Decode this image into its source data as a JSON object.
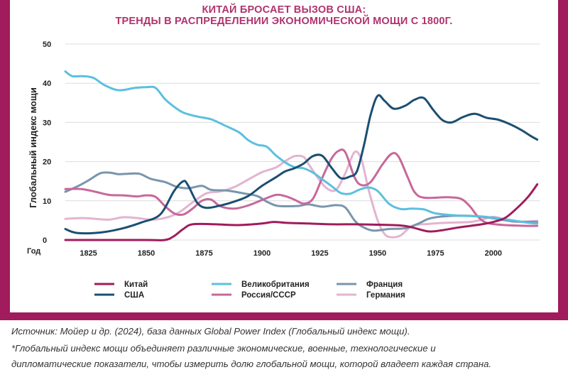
{
  "header": {
    "title_line1": "КИТАЙ БРОСАЕТ ВЫЗОВ США:",
    "title_line2": "ТРЕНДЫ В РАСПРЕДЕЛЕНИИ ЭКОНОМИЧЕСКОЙ МОЩИ С 1800Г."
  },
  "footer": {
    "source": "Источник: Мойер и др. (2024), база данных Global Power Index (Глобальный индекс мощи).",
    "note_line1": "*Глобальный индекс мощи объединяет различные экономические, военные, технологические и",
    "note_line2": "дипломатические показатели, чтобы измерить долю глобальной мощи, которой владеет каждая страна."
  },
  "colors": {
    "frame": "#a01c5c",
    "title": "#b0336e"
  },
  "chart_data": {
    "type": "line",
    "ylabel": "Глобальный индекс мощи",
    "xlabel": "Год",
    "xlim": [
      1815,
      2020
    ],
    "ylim": [
      0,
      50
    ],
    "xticks": [
      1825,
      1850,
      1875,
      1900,
      1925,
      1950,
      1975,
      2000
    ],
    "yticks": [
      0,
      10,
      20,
      30,
      40,
      50
    ],
    "grid": "horizontal",
    "legend_position": "bottom",
    "series": [
      {
        "name": "Китай",
        "color": "#a01c5c",
        "points": [
          [
            1815,
            0
          ],
          [
            1850,
            0
          ],
          [
            1858,
            0
          ],
          [
            1862,
            1
          ],
          [
            1866,
            2.8
          ],
          [
            1870,
            4
          ],
          [
            1880,
            4
          ],
          [
            1890,
            3.8
          ],
          [
            1900,
            4.2
          ],
          [
            1905,
            4.6
          ],
          [
            1910,
            4.4
          ],
          [
            1920,
            4.2
          ],
          [
            1930,
            4
          ],
          [
            1940,
            4
          ],
          [
            1950,
            3.9
          ],
          [
            1960,
            3.7
          ],
          [
            1965,
            3.2
          ],
          [
            1972,
            2.2
          ],
          [
            1978,
            2.5
          ],
          [
            1985,
            3.2
          ],
          [
            1995,
            4
          ],
          [
            2000,
            4.6
          ],
          [
            2005,
            5.6
          ],
          [
            2010,
            8
          ],
          [
            2015,
            11
          ],
          [
            2019,
            14.2
          ]
        ]
      },
      {
        "name": "Великобритания",
        "color": "#5bc0de",
        "points": [
          [
            1815,
            43
          ],
          [
            1818,
            41.8
          ],
          [
            1822,
            41.8
          ],
          [
            1827,
            41.4
          ],
          [
            1832,
            39.5
          ],
          [
            1838,
            38.2
          ],
          [
            1845,
            38.8
          ],
          [
            1850,
            39
          ],
          [
            1854,
            38.8
          ],
          [
            1858,
            36
          ],
          [
            1862,
            34
          ],
          [
            1866,
            32.5
          ],
          [
            1872,
            31.5
          ],
          [
            1878,
            30.8
          ],
          [
            1884,
            29.2
          ],
          [
            1890,
            27.5
          ],
          [
            1894,
            25.5
          ],
          [
            1898,
            24.3
          ],
          [
            1902,
            23.8
          ],
          [
            1906,
            21.6
          ],
          [
            1910,
            19.8
          ],
          [
            1914,
            18.6
          ],
          [
            1918,
            18.3
          ],
          [
            1922,
            17.2
          ],
          [
            1926,
            15.5
          ],
          [
            1930,
            13.8
          ],
          [
            1934,
            12
          ],
          [
            1938,
            11.8
          ],
          [
            1942,
            12.8
          ],
          [
            1946,
            13.4
          ],
          [
            1950,
            12.5
          ],
          [
            1955,
            9.2
          ],
          [
            1960,
            7.9
          ],
          [
            1965,
            8
          ],
          [
            1970,
            7.8
          ],
          [
            1975,
            6.8
          ],
          [
            1985,
            6.2
          ],
          [
            1995,
            6
          ],
          [
            2005,
            5.3
          ],
          [
            2015,
            4.4
          ],
          [
            2019,
            4.2
          ]
        ]
      },
      {
        "name": "США",
        "color": "#1b4f72",
        "points": [
          [
            1815,
            2.8
          ],
          [
            1820,
            1.8
          ],
          [
            1830,
            1.9
          ],
          [
            1840,
            3
          ],
          [
            1848,
            4.5
          ],
          [
            1856,
            6.5
          ],
          [
            1862,
            12.5
          ],
          [
            1866,
            15
          ],
          [
            1868,
            14
          ],
          [
            1872,
            9.5
          ],
          [
            1876,
            8.2
          ],
          [
            1882,
            8.8
          ],
          [
            1888,
            9.8
          ],
          [
            1894,
            11.2
          ],
          [
            1900,
            13.8
          ],
          [
            1906,
            16
          ],
          [
            1910,
            17.5
          ],
          [
            1914,
            18.3
          ],
          [
            1918,
            19.5
          ],
          [
            1922,
            21.4
          ],
          [
            1926,
            21.5
          ],
          [
            1930,
            18.5
          ],
          [
            1934,
            15.8
          ],
          [
            1938,
            16.2
          ],
          [
            1941,
            17.5
          ],
          [
            1944,
            24
          ],
          [
            1947,
            32
          ],
          [
            1950,
            36.8
          ],
          [
            1953,
            35.5
          ],
          [
            1957,
            33.5
          ],
          [
            1962,
            34.3
          ],
          [
            1966,
            35.8
          ],
          [
            1970,
            36.2
          ],
          [
            1974,
            33.2
          ],
          [
            1978,
            30.6
          ],
          [
            1982,
            30
          ],
          [
            1987,
            31.4
          ],
          [
            1992,
            32.2
          ],
          [
            1997,
            31.2
          ],
          [
            2002,
            30.7
          ],
          [
            2007,
            29.6
          ],
          [
            2012,
            28.1
          ],
          [
            2016,
            26.6
          ],
          [
            2019,
            25.6
          ]
        ]
      },
      {
        "name": "Россия/СССР",
        "color": "#c7689a",
        "points": [
          [
            1815,
            13
          ],
          [
            1822,
            13
          ],
          [
            1828,
            12.3
          ],
          [
            1834,
            11.5
          ],
          [
            1840,
            11.4
          ],
          [
            1846,
            11.1
          ],
          [
            1850,
            11.4
          ],
          [
            1854,
            11
          ],
          [
            1858,
            8.7
          ],
          [
            1862,
            6.8
          ],
          [
            1866,
            6.5
          ],
          [
            1870,
            8
          ],
          [
            1874,
            10
          ],
          [
            1878,
            10.3
          ],
          [
            1882,
            8.6
          ],
          [
            1888,
            8
          ],
          [
            1894,
            8.8
          ],
          [
            1900,
            10.2
          ],
          [
            1906,
            11.5
          ],
          [
            1910,
            11.2
          ],
          [
            1914,
            10.3
          ],
          [
            1918,
            9.3
          ],
          [
            1922,
            10.5
          ],
          [
            1926,
            15.8
          ],
          [
            1930,
            20.7
          ],
          [
            1933,
            22.7
          ],
          [
            1936,
            22.4
          ],
          [
            1940,
            16
          ],
          [
            1943,
            14
          ],
          [
            1947,
            14.8
          ],
          [
            1952,
            19.2
          ],
          [
            1956,
            22
          ],
          [
            1959,
            21.3
          ],
          [
            1963,
            16
          ],
          [
            1966,
            12.2
          ],
          [
            1970,
            10.8
          ],
          [
            1980,
            10.9
          ],
          [
            1986,
            10.5
          ],
          [
            1990,
            8.5
          ],
          [
            1993,
            6.2
          ],
          [
            1997,
            4.4
          ],
          [
            2005,
            3.8
          ],
          [
            2015,
            3.6
          ],
          [
            2019,
            3.6
          ]
        ]
      },
      {
        "name": "Франция",
        "color": "#7895ad",
        "points": [
          [
            1815,
            12.3
          ],
          [
            1820,
            13.6
          ],
          [
            1825,
            15.2
          ],
          [
            1830,
            17
          ],
          [
            1834,
            17.2
          ],
          [
            1838,
            16.8
          ],
          [
            1842,
            16.9
          ],
          [
            1847,
            16.9
          ],
          [
            1852,
            15.6
          ],
          [
            1858,
            14.8
          ],
          [
            1863,
            13.6
          ],
          [
            1868,
            13.2
          ],
          [
            1874,
            13.8
          ],
          [
            1878,
            12.8
          ],
          [
            1885,
            12.6
          ],
          [
            1892,
            11.9
          ],
          [
            1898,
            11.2
          ],
          [
            1902,
            9.8
          ],
          [
            1906,
            8.8
          ],
          [
            1910,
            8.6
          ],
          [
            1916,
            8.7
          ],
          [
            1920,
            9.1
          ],
          [
            1926,
            8.5
          ],
          [
            1932,
            8.9
          ],
          [
            1936,
            8.3
          ],
          [
            1940,
            5
          ],
          [
            1943,
            3.5
          ],
          [
            1948,
            2.4
          ],
          [
            1955,
            2.8
          ],
          [
            1962,
            3
          ],
          [
            1968,
            4.3
          ],
          [
            1972,
            5.4
          ],
          [
            1978,
            6
          ],
          [
            1988,
            6.2
          ],
          [
            1998,
            5.7
          ],
          [
            2008,
            4.8
          ],
          [
            2019,
            4.6
          ]
        ]
      },
      {
        "name": "Германия",
        "color": "#e3b4d0",
        "points": [
          [
            1815,
            5.4
          ],
          [
            1822,
            5.6
          ],
          [
            1828,
            5.4
          ],
          [
            1834,
            5.2
          ],
          [
            1840,
            5.8
          ],
          [
            1846,
            5.6
          ],
          [
            1852,
            5.2
          ],
          [
            1858,
            5.6
          ],
          [
            1864,
            7
          ],
          [
            1870,
            9.6
          ],
          [
            1876,
            11.9
          ],
          [
            1882,
            12.4
          ],
          [
            1888,
            13.5
          ],
          [
            1894,
            15.4
          ],
          [
            1900,
            17.3
          ],
          [
            1906,
            18.5
          ],
          [
            1910,
            20.1
          ],
          [
            1914,
            21.4
          ],
          [
            1918,
            21.2
          ],
          [
            1920,
            19.5
          ],
          [
            1924,
            16
          ],
          [
            1928,
            13.2
          ],
          [
            1932,
            12.8
          ],
          [
            1936,
            17
          ],
          [
            1940,
            22.4
          ],
          [
            1943,
            20.5
          ],
          [
            1946,
            13
          ],
          [
            1950,
            5
          ],
          [
            1953,
            1.5
          ],
          [
            1956,
            0.7
          ],
          [
            1960,
            1.2
          ],
          [
            1965,
            3.6
          ],
          [
            1972,
            4.1
          ],
          [
            1980,
            4.4
          ],
          [
            1990,
            4.6
          ],
          [
            1995,
            5.2
          ],
          [
            2000,
            5.9
          ],
          [
            2005,
            5.2
          ],
          [
            2010,
            4.6
          ],
          [
            2019,
            4.9
          ]
        ]
      }
    ]
  }
}
